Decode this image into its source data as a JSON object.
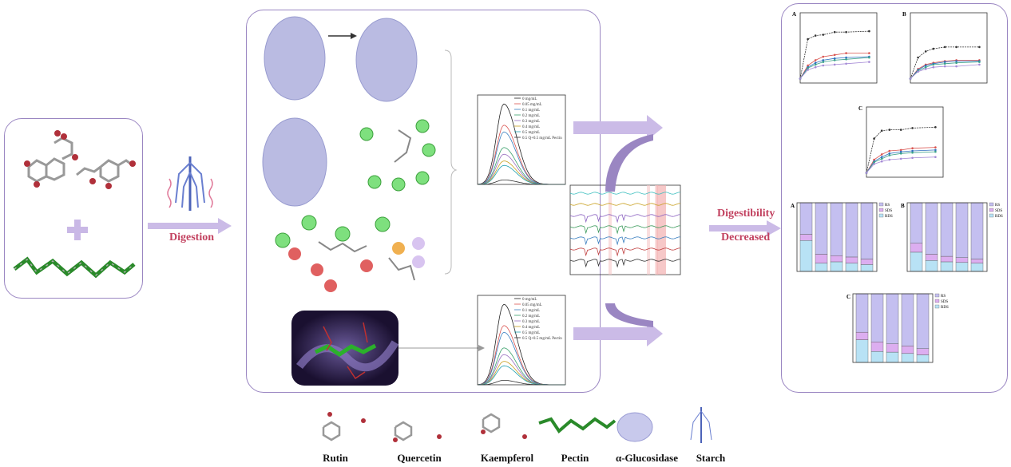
{
  "arrows": {
    "digestion_label": "Digestion",
    "result_line1": "Digestibility",
    "result_line2": "Decreased"
  },
  "legend": {
    "items": [
      "Rutin",
      "Quercetin",
      "Kaempferol",
      "Pectin",
      "α-Glucosidase",
      "Starch"
    ]
  },
  "fluorescence": {
    "legend": [
      "0 mg/mL",
      "0.05 mg/mL",
      "0.1 mg/mL",
      "0.2 mg/mL",
      "0.3 mg/mL",
      "0.4 mg/mL",
      "0.5 mg/mL",
      "0.5 Q+0.5 mg/mL Pectin"
    ],
    "peaks": [
      720,
      530,
      470,
      330,
      270,
      210,
      170,
      40
    ],
    "colors": [
      "#222222",
      "#d9534f",
      "#3a7fc0",
      "#3aa06a",
      "#9a6fc0",
      "#c8a020",
      "#20a0b0",
      "#333333"
    ]
  },
  "digestion_curves": {
    "colors": [
      "#333333",
      "#d9534f",
      "#2f6fbf",
      "#3aa08a",
      "#a58ad6"
    ],
    "time": [
      0,
      20,
      40,
      60,
      90,
      120,
      180
    ],
    "panels": [
      {
        "label": "A",
        "series": [
          [
            5,
            50,
            54,
            55,
            58,
            58,
            59
          ],
          [
            5,
            20,
            26,
            30,
            32,
            34,
            34
          ],
          [
            5,
            18,
            23,
            26,
            28,
            29,
            30
          ],
          [
            5,
            17,
            21,
            24,
            26,
            27,
            29
          ],
          [
            5,
            15,
            18,
            20,
            21,
            22,
            24
          ]
        ]
      },
      {
        "label": "B",
        "series": [
          [
            5,
            29,
            36,
            39,
            41,
            41,
            41
          ],
          [
            5,
            16,
            21,
            23,
            25,
            26,
            26
          ],
          [
            5,
            15,
            20,
            22,
            24,
            25,
            25
          ],
          [
            5,
            14,
            18,
            21,
            22,
            23,
            24
          ],
          [
            5,
            13,
            16,
            18,
            19,
            19,
            21
          ]
        ]
      },
      {
        "label": "C",
        "series": [
          [
            5,
            44,
            53,
            54,
            54,
            56,
            57
          ],
          [
            5,
            20,
            26,
            30,
            31,
            33,
            34
          ],
          [
            5,
            18,
            23,
            27,
            29,
            30,
            31
          ],
          [
            5,
            17,
            21,
            25,
            27,
            28,
            29
          ],
          [
            5,
            15,
            18,
            20,
            21,
            22,
            23
          ]
        ]
      }
    ]
  },
  "starch_fractions": {
    "legend": [
      "RS",
      "SDS",
      "RDS"
    ],
    "colors": [
      "#c4bff0",
      "#dcaef0",
      "#b8e2f5"
    ],
    "panels": [
      {
        "label": "A",
        "bars": [
          [
            45,
            9,
            46
          ],
          [
            12,
            13,
            75
          ],
          [
            14,
            9,
            77
          ],
          [
            12,
            9,
            79
          ],
          [
            10,
            8,
            82
          ]
        ]
      },
      {
        "label": "B",
        "bars": [
          [
            28,
            13,
            59
          ],
          [
            16,
            9,
            75
          ],
          [
            14,
            8,
            78
          ],
          [
            13,
            7,
            80
          ],
          [
            12,
            6,
            82
          ]
        ]
      },
      {
        "label": "C",
        "bars": [
          [
            33,
            11,
            56
          ],
          [
            16,
            14,
            70
          ],
          [
            15,
            12,
            73
          ],
          [
            13,
            11,
            76
          ],
          [
            11,
            9,
            80
          ]
        ]
      }
    ]
  }
}
